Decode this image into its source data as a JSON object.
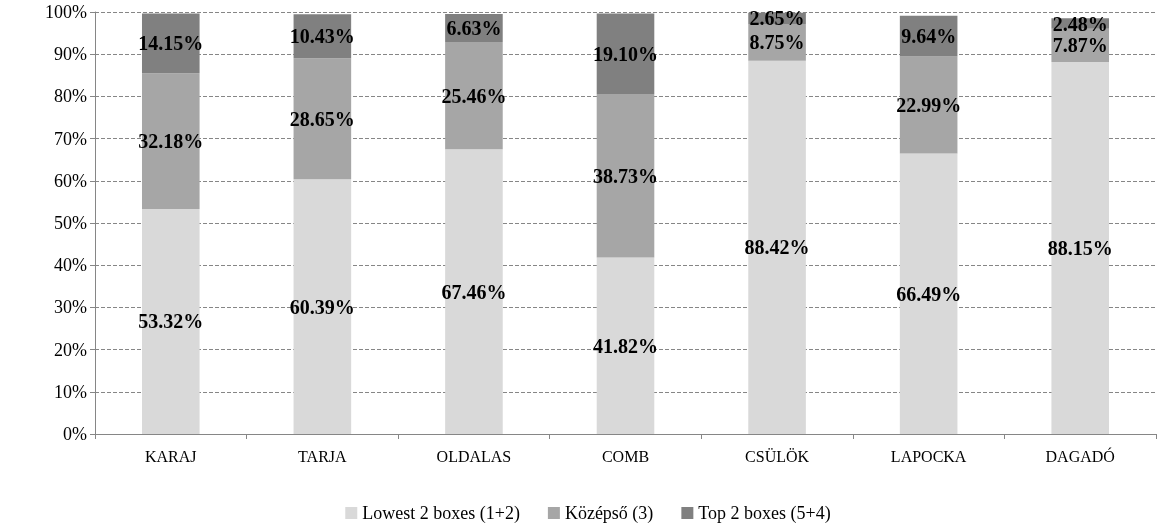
{
  "chart_data": {
    "type": "bar",
    "stacked": true,
    "categories": [
      "KARAJ",
      "TARJA",
      "OLDALAS",
      "COMB",
      "CSÜLÖK",
      "LAPOCKA",
      "DAGADÓ"
    ],
    "series": [
      {
        "name": "Lowest 2 boxes (1+2)",
        "color": "#d9d9d9",
        "values": [
          53.32,
          60.39,
          67.46,
          41.82,
          88.42,
          66.49,
          88.15
        ],
        "value_labels": [
          "53.32%",
          "60.39%",
          "67.46%",
          "41.82%",
          "88.42%",
          "66.49%",
          "88.15%"
        ]
      },
      {
        "name": "Középső (3)",
        "color": "#a6a6a6",
        "values": [
          32.18,
          28.65,
          25.46,
          38.73,
          8.75,
          22.99,
          7.87
        ],
        "value_labels": [
          "32.18%",
          "28.65%",
          "25.46%",
          "38.73%",
          "8.75%",
          "22.99%",
          "7.87%"
        ]
      },
      {
        "name": "Top 2 boxes (5+4)",
        "color": "#808080",
        "values": [
          14.15,
          10.43,
          6.63,
          19.1,
          2.65,
          9.64,
          2.48
        ],
        "value_labels": [
          "14.15%",
          "10.43%",
          "6.63%",
          "19.10%",
          "2.65%",
          "9.64%",
          "2.48%"
        ]
      }
    ],
    "ylim": [
      0,
      100
    ],
    "yticks": [
      {
        "value": 0,
        "label": "0%"
      },
      {
        "value": 10,
        "label": "10%"
      },
      {
        "value": 20,
        "label": "20%"
      },
      {
        "value": 30,
        "label": "30%"
      },
      {
        "value": 40,
        "label": "40%"
      },
      {
        "value": 50,
        "label": "50%"
      },
      {
        "value": 60,
        "label": "60%"
      },
      {
        "value": 70,
        "label": "70%"
      },
      {
        "value": 80,
        "label": "80%"
      },
      {
        "value": 90,
        "label": "90%"
      },
      {
        "value": 100,
        "label": "100%"
      }
    ],
    "grid": "y",
    "legend": "bottom"
  }
}
